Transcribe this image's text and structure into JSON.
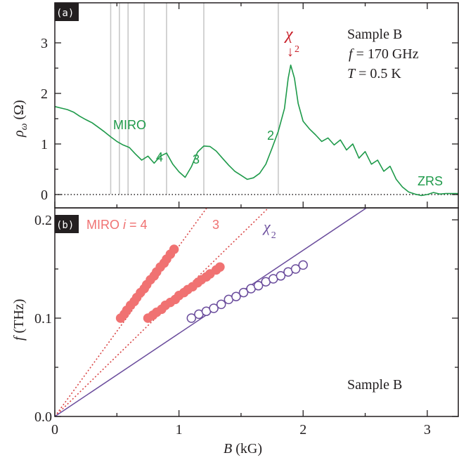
{
  "chart_data": [
    {
      "panel": "(a)",
      "type": "line",
      "ylabel_symbol": "ρ",
      "ylabel_subscript": "ω",
      "ylabel_unit": "(Ω)",
      "ylim": [
        -0.2,
        3.4
      ],
      "xlim": [
        0,
        3.25
      ],
      "yticks": [
        0,
        1,
        2,
        3
      ],
      "ytick_labels": [
        "0",
        "1",
        "2",
        "3"
      ],
      "xticks": [
        0,
        1,
        2,
        3
      ],
      "grid": false,
      "vertical_reference_lines_B": [
        0.45,
        0.52,
        0.59,
        0.72,
        0.9,
        1.2,
        1.8
      ],
      "zero_line": "dotted",
      "series": [
        {
          "color": "#1e9a4a",
          "x": [
            0.0,
            0.05,
            0.1,
            0.15,
            0.2,
            0.25,
            0.3,
            0.35,
            0.4,
            0.45,
            0.5,
            0.55,
            0.6,
            0.65,
            0.7,
            0.75,
            0.8,
            0.85,
            0.9,
            0.95,
            1.0,
            1.05,
            1.1,
            1.15,
            1.2,
            1.25,
            1.3,
            1.35,
            1.4,
            1.45,
            1.5,
            1.55,
            1.6,
            1.65,
            1.7,
            1.75,
            1.8,
            1.85,
            1.88,
            1.9,
            1.93,
            1.96,
            2.0,
            2.05,
            2.1,
            2.15,
            2.2,
            2.25,
            2.3,
            2.35,
            2.4,
            2.45,
            2.5,
            2.55,
            2.6,
            2.65,
            2.7,
            2.75,
            2.8,
            2.85,
            2.9,
            2.95,
            3.0,
            3.05,
            3.1,
            3.15,
            3.2,
            3.25
          ],
          "y": [
            1.74,
            1.71,
            1.68,
            1.63,
            1.55,
            1.48,
            1.42,
            1.33,
            1.24,
            1.14,
            1.05,
            0.98,
            0.93,
            0.8,
            0.68,
            0.76,
            0.62,
            0.76,
            0.82,
            0.6,
            0.45,
            0.34,
            0.55,
            0.84,
            0.96,
            0.95,
            0.86,
            0.72,
            0.58,
            0.46,
            0.38,
            0.3,
            0.33,
            0.42,
            0.6,
            0.92,
            1.25,
            1.7,
            2.3,
            2.56,
            2.3,
            1.8,
            1.45,
            1.3,
            1.18,
            1.05,
            1.12,
            0.98,
            1.08,
            0.88,
            1.0,
            0.72,
            0.85,
            0.6,
            0.68,
            0.46,
            0.56,
            0.3,
            0.15,
            0.05,
            0.01,
            -0.02,
            0.0,
            0.04,
            0.01,
            0.02,
            0.02,
            0.02
          ]
        }
      ],
      "annotations": {
        "miro_label": "MIRO",
        "order_4": "4",
        "order_3": "3",
        "order_2": "2",
        "zrs_label": "ZRS",
        "chi_symbol": "χ",
        "chi_subscript": "2",
        "arrow": "↓",
        "sample": "Sample B",
        "f_symbol": "f",
        "f_value": " = 170 GHz",
        "T_symbol": "T",
        "T_value": " = 0.5 K"
      },
      "colors": {
        "trace": "#1e9a4a",
        "chi": "#c8202a",
        "reference": "#c8c8c8"
      }
    },
    {
      "panel": "(b)",
      "type": "scatter",
      "ylabel_symbol": "f",
      "ylabel_unit": "(THz)",
      "xlabel_symbol": "B",
      "xlabel_unit": "(kG)",
      "xlim": [
        0,
        3.25
      ],
      "ylim": [
        0,
        0.2
      ],
      "xticks": [
        0,
        1,
        2,
        3
      ],
      "xtick_labels": [
        "0",
        "1",
        "2",
        "3"
      ],
      "yticks": [
        0.0,
        0.1,
        0.2
      ],
      "ytick_labels": [
        "0.0",
        "0.1",
        "0.2"
      ],
      "grid": false,
      "series": [
        {
          "color": "#f07272",
          "marker": "filled-circle",
          "x": [
            0.53,
            0.56,
            0.58,
            0.61,
            0.64,
            0.66,
            0.69,
            0.72,
            0.74,
            0.77,
            0.8,
            0.82,
            0.85,
            0.88,
            0.9,
            0.93,
            0.96
          ],
          "y": [
            0.1,
            0.104,
            0.108,
            0.113,
            0.117,
            0.121,
            0.126,
            0.13,
            0.134,
            0.139,
            0.143,
            0.147,
            0.152,
            0.156,
            0.16,
            0.165,
            0.17
          ]
        },
        {
          "color": "#f07272",
          "marker": "filled-circle",
          "x": [
            0.75,
            0.79,
            0.82,
            0.86,
            0.89,
            0.93,
            0.97,
            1.0,
            1.04,
            1.07,
            1.11,
            1.15,
            1.18,
            1.22,
            1.25,
            1.3,
            1.33
          ],
          "y": [
            0.1,
            0.103,
            0.106,
            0.109,
            0.113,
            0.116,
            0.119,
            0.123,
            0.126,
            0.129,
            0.132,
            0.136,
            0.139,
            0.142,
            0.145,
            0.149,
            0.152
          ]
        },
        {
          "color": "#6a4c9c",
          "marker": "open-circle",
          "x": [
            1.1,
            1.16,
            1.22,
            1.28,
            1.34,
            1.4,
            1.46,
            1.52,
            1.58,
            1.64,
            1.7,
            1.76,
            1.82,
            1.88,
            1.94,
            2.0
          ],
          "y": [
            0.1,
            0.104,
            0.107,
            0.11,
            0.114,
            0.119,
            0.122,
            0.126,
            0.13,
            0.133,
            0.137,
            0.14,
            0.143,
            0.147,
            0.15,
            0.154
          ]
        }
      ],
      "fit_lines": [
        {
          "style": "dotted",
          "color": "#d94444",
          "slope": 0.1733
        },
        {
          "style": "dotted",
          "color": "#d94444",
          "slope": 0.1233
        },
        {
          "style": "solid",
          "color": "#6a4c9c",
          "slope": 0.0845
        }
      ],
      "annotations": {
        "miro_label": "MIRO ",
        "i_symbol": "i",
        "i_value": " = 4",
        "order_3": "3",
        "chi_symbol": "χ",
        "chi_subscript": "2",
        "sample": "Sample B"
      },
      "colors": {
        "miro": "#f07272",
        "chi": "#6a4c9c"
      }
    }
  ]
}
